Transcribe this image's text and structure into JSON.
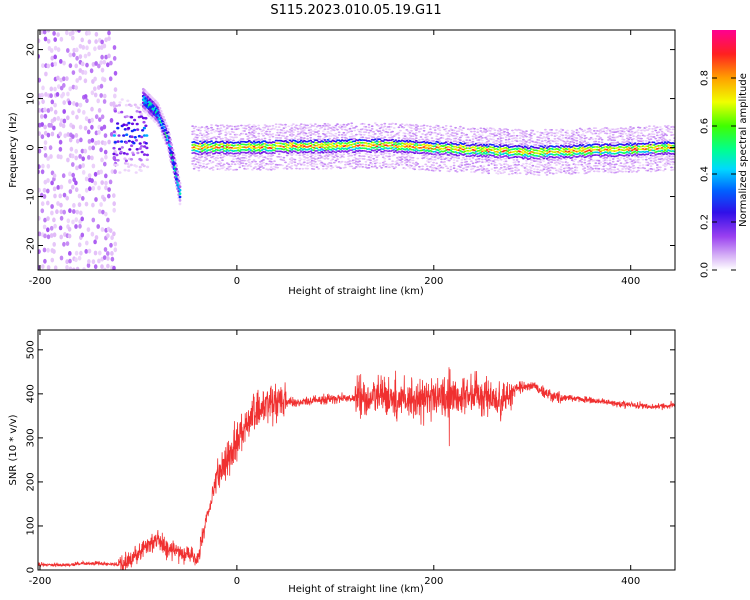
{
  "figure_title": "S115.2023.010.05.19.G11",
  "chart_data": [
    {
      "type": "heatmap",
      "title": "S115.2023.010.05.19.G11",
      "xlabel": "Height of straight line (km)",
      "ylabel": "Frequency (Hz)",
      "xlim": [
        -202,
        445
      ],
      "ylim": [
        -25,
        24
      ],
      "x_ticks": [
        -200,
        0,
        200,
        400
      ],
      "y_ticks": [
        -20,
        -10,
        0,
        10,
        20
      ],
      "colorbar": {
        "label": "Normalized spectral amplitude",
        "range": [
          0,
          1
        ],
        "ticks": [
          0.0,
          0.2,
          0.4,
          0.6,
          0.8
        ],
        "colormap": [
          "#ffffff",
          "#e0b8f8",
          "#9a40f0",
          "#5a00e0",
          "#0030ff",
          "#00c8ff",
          "#00ff80",
          "#50ff00",
          "#ffff00",
          "#ff9000",
          "#ff2020",
          "#ff0090"
        ]
      },
      "features": [
        {
          "name": "noise",
          "x_range": [
            -202,
            -125
          ],
          "freq_range": [
            -25,
            24
          ],
          "amplitude": 0.1
        },
        {
          "name": "transition",
          "x_range": [
            -125,
            -90
          ],
          "freq_center": 2,
          "freq_spread": 5,
          "amplitude": 0.35
        },
        {
          "name": "ridge",
          "points": [
            [
              -95,
              10
            ],
            [
              -80,
              7
            ],
            [
              -70,
              2
            ],
            [
              -62,
              -5
            ],
            [
              -57,
              -10
            ]
          ],
          "amplitude": 0.5
        },
        {
          "name": "carrier",
          "x_range": [
            -45,
            445
          ],
          "freq": [
            [
              -45,
              0
            ],
            [
              150,
              0.5
            ],
            [
              300,
              -1
            ],
            [
              445,
              0
            ]
          ],
          "amplitude": 0.85
        }
      ],
      "grid": false,
      "legend": "none"
    },
    {
      "type": "line",
      "xlabel": "Height of straight line (km)",
      "ylabel": "SNR (10 * v/v)",
      "xlim": [
        -202,
        445
      ],
      "ylim": [
        0,
        545
      ],
      "x_ticks": [
        -200,
        0,
        200,
        400
      ],
      "y_ticks": [
        0,
        100,
        200,
        300,
        400,
        500
      ],
      "color": "#f03030",
      "series": [
        {
          "x": [
            -200,
            -180,
            -160,
            -140,
            -120,
            -110,
            -100,
            -90,
            -80,
            -70,
            -60,
            -50,
            -40,
            -30,
            -20,
            -10,
            0,
            10,
            20,
            30,
            40,
            60,
            80,
            100,
            120,
            140,
            160,
            180,
            200,
            220,
            240,
            260,
            270,
            275,
            280,
            300,
            320,
            340,
            360,
            380,
            400,
            420,
            445
          ],
          "values": [
            12,
            11,
            14,
            15,
            13,
            20,
            35,
            60,
            70,
            45,
            45,
            35,
            25,
            120,
            210,
            250,
            290,
            340,
            360,
            380,
            385,
            380,
            385,
            390,
            390,
            390,
            390,
            390,
            390,
            395,
            400,
            390,
            380,
            400,
            410,
            420,
            395,
            390,
            385,
            380,
            375,
            370,
            375
          ]
        }
      ],
      "grid": false,
      "legend": "none"
    }
  ]
}
